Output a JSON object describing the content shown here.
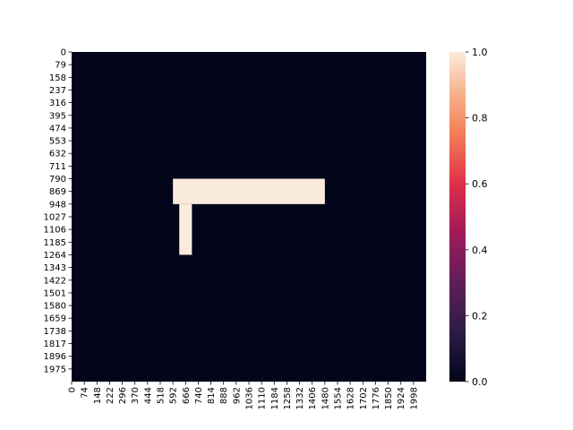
{
  "chart_data": {
    "type": "heatmap",
    "title": "",
    "xlabel": "",
    "ylabel": "",
    "x_range": [
      0,
      2072
    ],
    "y_range": [
      0,
      2054
    ],
    "x_ticks": [
      "0",
      "74",
      "148",
      "222",
      "296",
      "370",
      "444",
      "518",
      "592",
      "666",
      "740",
      "814",
      "888",
      "962",
      "1036",
      "1110",
      "1184",
      "1258",
      "1332",
      "1406",
      "1480",
      "1554",
      "1628",
      "1702",
      "1776",
      "1850",
      "1924",
      "1998"
    ],
    "y_ticks": [
      "0",
      "79",
      "158",
      "237",
      "316",
      "395",
      "474",
      "553",
      "632",
      "711",
      "790",
      "869",
      "948",
      "1027",
      "1106",
      "1185",
      "1264",
      "1343",
      "1422",
      "1501",
      "1580",
      "1659",
      "1738",
      "1817",
      "1896",
      "1975"
    ],
    "background_value": 0.0,
    "regions": [
      {
        "x_start": 592,
        "x_end": 1480,
        "y_start": 790,
        "y_end": 948,
        "value": 1.0
      },
      {
        "x_start": 629,
        "x_end": 703,
        "y_start": 948,
        "y_end": 1264,
        "value": 1.0
      }
    ],
    "colorbar": {
      "colormap": "rocket",
      "vmin": 0.0,
      "vmax": 1.0,
      "ticks": [
        "0.0",
        "0.2",
        "0.4",
        "0.6",
        "0.8",
        "1.0"
      ],
      "low_color": "#03051a",
      "high_color": "#faebdd"
    },
    "grid": false,
    "legend": "none"
  }
}
